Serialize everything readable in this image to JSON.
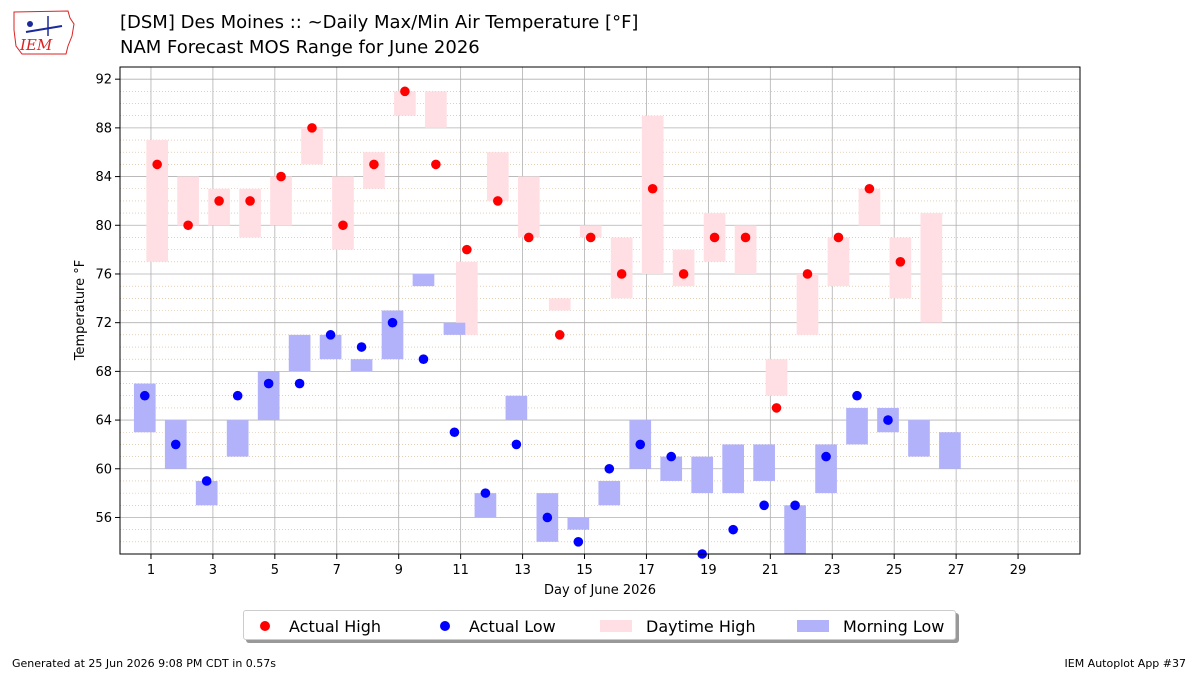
{
  "header": {
    "title_line1": "[DSM] Des Moines :: ~Daily Max/Min Air Temperature [°F]",
    "title_line2": "NAM Forecast MOS Range for June 2026",
    "logo_text": "IEM"
  },
  "footer": {
    "generated": "Generated at 25 Jun 2026 9:08 PM CDT in 0.57s",
    "app": "IEM Autoplot App #37"
  },
  "colors": {
    "actual_high": "#ff0000",
    "actual_low": "#0000ff",
    "daytime_high_range": "#ffdfe4",
    "morning_low_range": "#b2b2fa",
    "grid_major": "#b0b0b0",
    "grid_minor": "#d2b48c"
  },
  "chart_data": {
    "type": "bar",
    "xlabel": "Day of June 2026",
    "ylabel": "Temperature °F",
    "xlim": [
      0,
      31
    ],
    "ylim": [
      53,
      93
    ],
    "xticks": [
      1,
      3,
      5,
      7,
      9,
      11,
      13,
      15,
      17,
      19,
      21,
      23,
      25,
      27,
      29
    ],
    "yticks": [
      56,
      60,
      64,
      68,
      72,
      76,
      80,
      84,
      88,
      92
    ],
    "grid": true,
    "legend_placement": "bottom-center",
    "legend": [
      "Actual High",
      "Actual Low",
      "Daytime High",
      "Morning Low"
    ],
    "daytime_high_range": [
      {
        "day": 1,
        "low": 77,
        "high": 87
      },
      {
        "day": 2,
        "low": 80,
        "high": 84
      },
      {
        "day": 3,
        "low": 80,
        "high": 83
      },
      {
        "day": 4,
        "low": 79,
        "high": 83
      },
      {
        "day": 5,
        "low": 80,
        "high": 84
      },
      {
        "day": 6,
        "low": 85,
        "high": 88
      },
      {
        "day": 7,
        "low": 78,
        "high": 84
      },
      {
        "day": 8,
        "low": 83,
        "high": 86
      },
      {
        "day": 9,
        "low": 89,
        "high": 91
      },
      {
        "day": 10,
        "low": 88,
        "high": 91
      },
      {
        "day": 11,
        "low": 71,
        "high": 77
      },
      {
        "day": 12,
        "low": 82,
        "high": 86
      },
      {
        "day": 13,
        "low": 79,
        "high": 84
      },
      {
        "day": 14,
        "low": 73,
        "high": 74
      },
      {
        "day": 15,
        "low": 79,
        "high": 80
      },
      {
        "day": 16,
        "low": 74,
        "high": 79
      },
      {
        "day": 17,
        "low": 76,
        "high": 89
      },
      {
        "day": 18,
        "low": 75,
        "high": 78
      },
      {
        "day": 19,
        "low": 77,
        "high": 81
      },
      {
        "day": 20,
        "low": 76,
        "high": 80
      },
      {
        "day": 21,
        "low": 66,
        "high": 69
      },
      {
        "day": 22,
        "low": 71,
        "high": 76
      },
      {
        "day": 23,
        "low": 75,
        "high": 79
      },
      {
        "day": 24,
        "low": 80,
        "high": 83
      },
      {
        "day": 25,
        "low": 74,
        "high": 79
      },
      {
        "day": 26,
        "low": 72,
        "high": 81
      }
    ],
    "morning_low_range": [
      {
        "day": 1,
        "low": 63,
        "high": 67
      },
      {
        "day": 2,
        "low": 60,
        "high": 64
      },
      {
        "day": 3,
        "low": 57,
        "high": 59
      },
      {
        "day": 4,
        "low": 61,
        "high": 64
      },
      {
        "day": 5,
        "low": 64,
        "high": 68
      },
      {
        "day": 6,
        "low": 68,
        "high": 71
      },
      {
        "day": 7,
        "low": 69,
        "high": 71
      },
      {
        "day": 8,
        "low": 68,
        "high": 69
      },
      {
        "day": 9,
        "low": 69,
        "high": 73
      },
      {
        "day": 10,
        "low": 75,
        "high": 76
      },
      {
        "day": 11,
        "low": 71,
        "high": 72
      },
      {
        "day": 12,
        "low": 56,
        "high": 58
      },
      {
        "day": 13,
        "low": 64,
        "high": 66
      },
      {
        "day": 14,
        "low": 54,
        "high": 58
      },
      {
        "day": 15,
        "low": 55,
        "high": 56
      },
      {
        "day": 16,
        "low": 57,
        "high": 59
      },
      {
        "day": 17,
        "low": 60,
        "high": 64
      },
      {
        "day": 18,
        "low": 59,
        "high": 61
      },
      {
        "day": 19,
        "low": 58,
        "high": 61
      },
      {
        "day": 20,
        "low": 58,
        "high": 62
      },
      {
        "day": 21,
        "low": 59,
        "high": 62
      },
      {
        "day": 22,
        "low": 53,
        "high": 57
      },
      {
        "day": 23,
        "low": 58,
        "high": 62
      },
      {
        "day": 24,
        "low": 62,
        "high": 65
      },
      {
        "day": 25,
        "low": 63,
        "high": 65
      },
      {
        "day": 26,
        "low": 61,
        "high": 64
      },
      {
        "day": 27,
        "low": 60,
        "high": 63
      }
    ],
    "actual_high": [
      {
        "day": 1,
        "value": 85
      },
      {
        "day": 2,
        "value": 80
      },
      {
        "day": 3,
        "value": 82
      },
      {
        "day": 4,
        "value": 82
      },
      {
        "day": 5,
        "value": 84
      },
      {
        "day": 6,
        "value": 88
      },
      {
        "day": 7,
        "value": 80
      },
      {
        "day": 8,
        "value": 85
      },
      {
        "day": 9,
        "value": 91
      },
      {
        "day": 10,
        "value": 85
      },
      {
        "day": 11,
        "value": 78
      },
      {
        "day": 12,
        "value": 82
      },
      {
        "day": 13,
        "value": 79
      },
      {
        "day": 14,
        "value": 71
      },
      {
        "day": 15,
        "value": 79
      },
      {
        "day": 16,
        "value": 76
      },
      {
        "day": 17,
        "value": 83
      },
      {
        "day": 18,
        "value": 76
      },
      {
        "day": 19,
        "value": 79
      },
      {
        "day": 20,
        "value": 79
      },
      {
        "day": 21,
        "value": 65
      },
      {
        "day": 22,
        "value": 76
      },
      {
        "day": 23,
        "value": 79
      },
      {
        "day": 24,
        "value": 83
      },
      {
        "day": 25,
        "value": 77
      }
    ],
    "actual_low": [
      {
        "day": 1,
        "value": 66
      },
      {
        "day": 2,
        "value": 62
      },
      {
        "day": 3,
        "value": 59
      },
      {
        "day": 4,
        "value": 66
      },
      {
        "day": 5,
        "value": 67
      },
      {
        "day": 6,
        "value": 67
      },
      {
        "day": 7,
        "value": 71
      },
      {
        "day": 8,
        "value": 70
      },
      {
        "day": 9,
        "value": 72
      },
      {
        "day": 10,
        "value": 69
      },
      {
        "day": 11,
        "value": 63
      },
      {
        "day": 12,
        "value": 58
      },
      {
        "day": 13,
        "value": 62
      },
      {
        "day": 14,
        "value": 56
      },
      {
        "day": 15,
        "value": 54
      },
      {
        "day": 16,
        "value": 60
      },
      {
        "day": 17,
        "value": 62
      },
      {
        "day": 18,
        "value": 61
      },
      {
        "day": 19,
        "value": 53
      },
      {
        "day": 20,
        "value": 55
      },
      {
        "day": 21,
        "value": 57
      },
      {
        "day": 22,
        "value": 57
      },
      {
        "day": 23,
        "value": 61
      },
      {
        "day": 24,
        "value": 66
      },
      {
        "day": 25,
        "value": 64
      }
    ]
  }
}
